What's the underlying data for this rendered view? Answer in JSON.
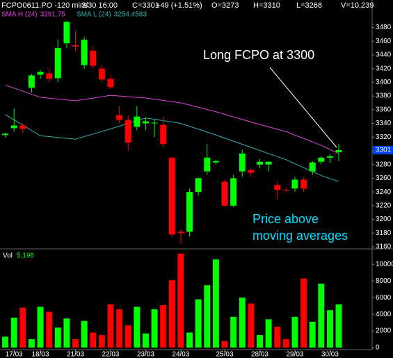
{
  "header": {
    "symbol": "FCPO0611.PO -120 mins",
    "datetime": "3/30 16:00",
    "close": "C=3301",
    "change": "+49 (+1.51%)",
    "open": "O=3273",
    "high": "H=3310",
    "low": "L=3268",
    "volume": "V=10,239"
  },
  "annotations": {
    "entry": "Long FCPO at 3300",
    "note": [
      "Price above",
      "moving averages"
    ]
  },
  "chart_data": [
    {
      "type": "candlestick",
      "open": [
        3323,
        3333,
        3337,
        3392,
        3411,
        3413,
        3406,
        3457,
        3454,
        3425,
        3446,
        3420,
        3405,
        3352,
        3345,
        3335,
        3340,
        3340,
        3338,
        3290,
        3182,
        3182,
        3240,
        3270,
        3283,
        3255,
        3220,
        3270,
        3272,
        3280,
        3280,
        3250,
        3243,
        3245,
        3258,
        3270,
        3284,
        3290,
        3298
      ],
      "high": [
        3326,
        3362,
        3340,
        3412,
        3418,
        3420,
        3462,
        3490,
        3475,
        3466,
        3452,
        3425,
        3410,
        3365,
        3352,
        3365,
        3348,
        3345,
        3350,
        3290,
        3185,
        3245,
        3262,
        3310,
        3287,
        3258,
        3265,
        3302,
        3275,
        3288,
        3285,
        3255,
        3246,
        3262,
        3262,
        3285,
        3292,
        3295,
        3310
      ],
      "low": [
        3320,
        3328,
        3326,
        3385,
        3405,
        3400,
        3400,
        3450,
        3445,
        3420,
        3420,
        3400,
        3390,
        3340,
        3300,
        3330,
        3330,
        3320,
        3305,
        3175,
        3165,
        3175,
        3235,
        3265,
        3280,
        3218,
        3218,
        3262,
        3262,
        3275,
        3270,
        3230,
        3240,
        3240,
        3240,
        3265,
        3280,
        3282,
        3285
      ],
      "close": [
        3325,
        3337,
        3332,
        3410,
        3415,
        3405,
        3450,
        3488,
        3452,
        3462,
        3424,
        3404,
        3393,
        3345,
        3312,
        3350,
        3343,
        3341,
        3310,
        3178,
        3180,
        3240,
        3260,
        3290,
        3285,
        3220,
        3260,
        3296,
        3268,
        3284,
        3284,
        3243,
        3242,
        3258,
        3245,
        3283,
        3290,
        3292,
        3301
      ],
      "up_color": "#00ff00",
      "down_color": "#ff0000",
      "xlim": [
        -0.6,
        41.8
      ],
      "ylim": [
        3158,
        3520
      ],
      "yticks": [
        3160,
        3180,
        3200,
        3220,
        3240,
        3260,
        3280,
        3300,
        3320,
        3340,
        3360,
        3380,
        3400,
        3420,
        3440,
        3460,
        3480
      ],
      "lines": [
        {
          "name": "SMA H (24)",
          "last_value": 3291.75,
          "color": "#e040e0",
          "x": [
            0,
            4,
            8,
            12,
            16,
            20,
            24,
            28,
            32,
            36,
            38
          ],
          "values": [
            3396,
            3378,
            3373,
            3381,
            3377,
            3370,
            3357,
            3342,
            3328,
            3308,
            3296
          ]
        },
        {
          "name": "SMA L (24)",
          "last_value": 3254.4583,
          "color": "#30b0b0",
          "x": [
            0,
            4,
            8,
            12,
            16,
            20,
            24,
            28,
            32,
            36,
            38
          ],
          "values": [
            3353,
            3322,
            3317,
            3332,
            3348,
            3340,
            3323,
            3305,
            3287,
            3264,
            3255
          ]
        }
      ]
    },
    {
      "type": "bar",
      "title": "Vol",
      "last_label": "5,196",
      "values": [
        1300,
        3600,
        4800,
        1000,
        4900,
        4300,
        2400,
        3500,
        1000,
        3200,
        1800,
        1500,
        5200,
        4600,
        2700,
        4900,
        1700,
        4600,
        5100,
        8100,
        11300,
        1800,
        5800,
        7500,
        10600,
        800,
        3700,
        6000,
        5300,
        1500,
        3400,
        2500,
        1000,
        3700,
        8300,
        3100,
        7700,
        4500,
        5196
      ],
      "xlim": [
        -0.6,
        41.8
      ],
      "ylim": [
        0,
        11700
      ],
      "yticks": [
        0,
        2000,
        4000,
        6000,
        8000,
        10000
      ],
      "xticks": [
        {
          "value": 1,
          "label": "17/03"
        },
        {
          "value": 4,
          "label": "18/03"
        },
        {
          "value": 8,
          "label": "21/03"
        },
        {
          "value": 12,
          "label": "22/03"
        },
        {
          "value": 16,
          "label": "23/03"
        },
        {
          "value": 20,
          "label": "24/03"
        },
        {
          "value": 25,
          "label": "25/03"
        },
        {
          "value": 29,
          "label": "28/03"
        },
        {
          "value": 33,
          "label": "29/03"
        },
        {
          "value": 37,
          "label": "30/03"
        }
      ]
    }
  ]
}
